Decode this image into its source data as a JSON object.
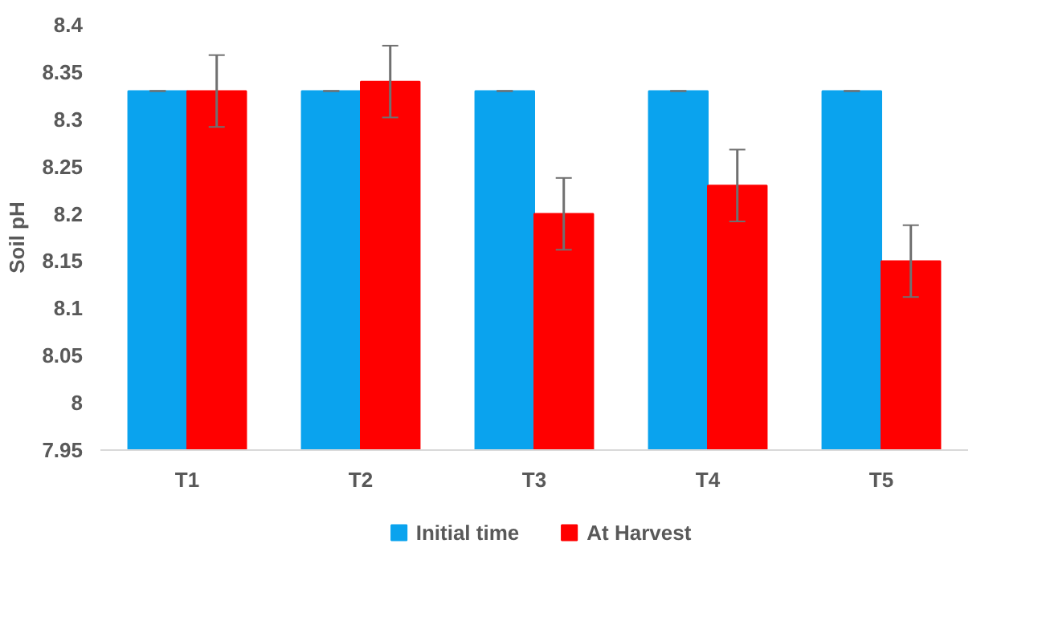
{
  "chart_data": {
    "type": "bar",
    "ylabel": "Soil pH",
    "categories": [
      "T1",
      "T2",
      "T3",
      "T4",
      "T5"
    ],
    "series": [
      {
        "name": "Initial time",
        "color": "#0aa3ee",
        "values": [
          8.33,
          8.33,
          8.33,
          8.33,
          8.33
        ],
        "errors": [
          0,
          0,
          0,
          0,
          0
        ]
      },
      {
        "name": "At Harvest",
        "color": "#ff0000",
        "values": [
          8.33,
          8.34,
          8.2,
          8.23,
          8.15
        ],
        "errors": [
          0.038,
          0.038,
          0.038,
          0.038,
          0.038
        ]
      }
    ],
    "ylim": [
      7.95,
      8.4
    ],
    "yticks": [
      7.95,
      8,
      8.05,
      8.1,
      8.15,
      8.2,
      8.25,
      8.3,
      8.35,
      8.4
    ],
    "grid": false,
    "legend": "bottom"
  }
}
